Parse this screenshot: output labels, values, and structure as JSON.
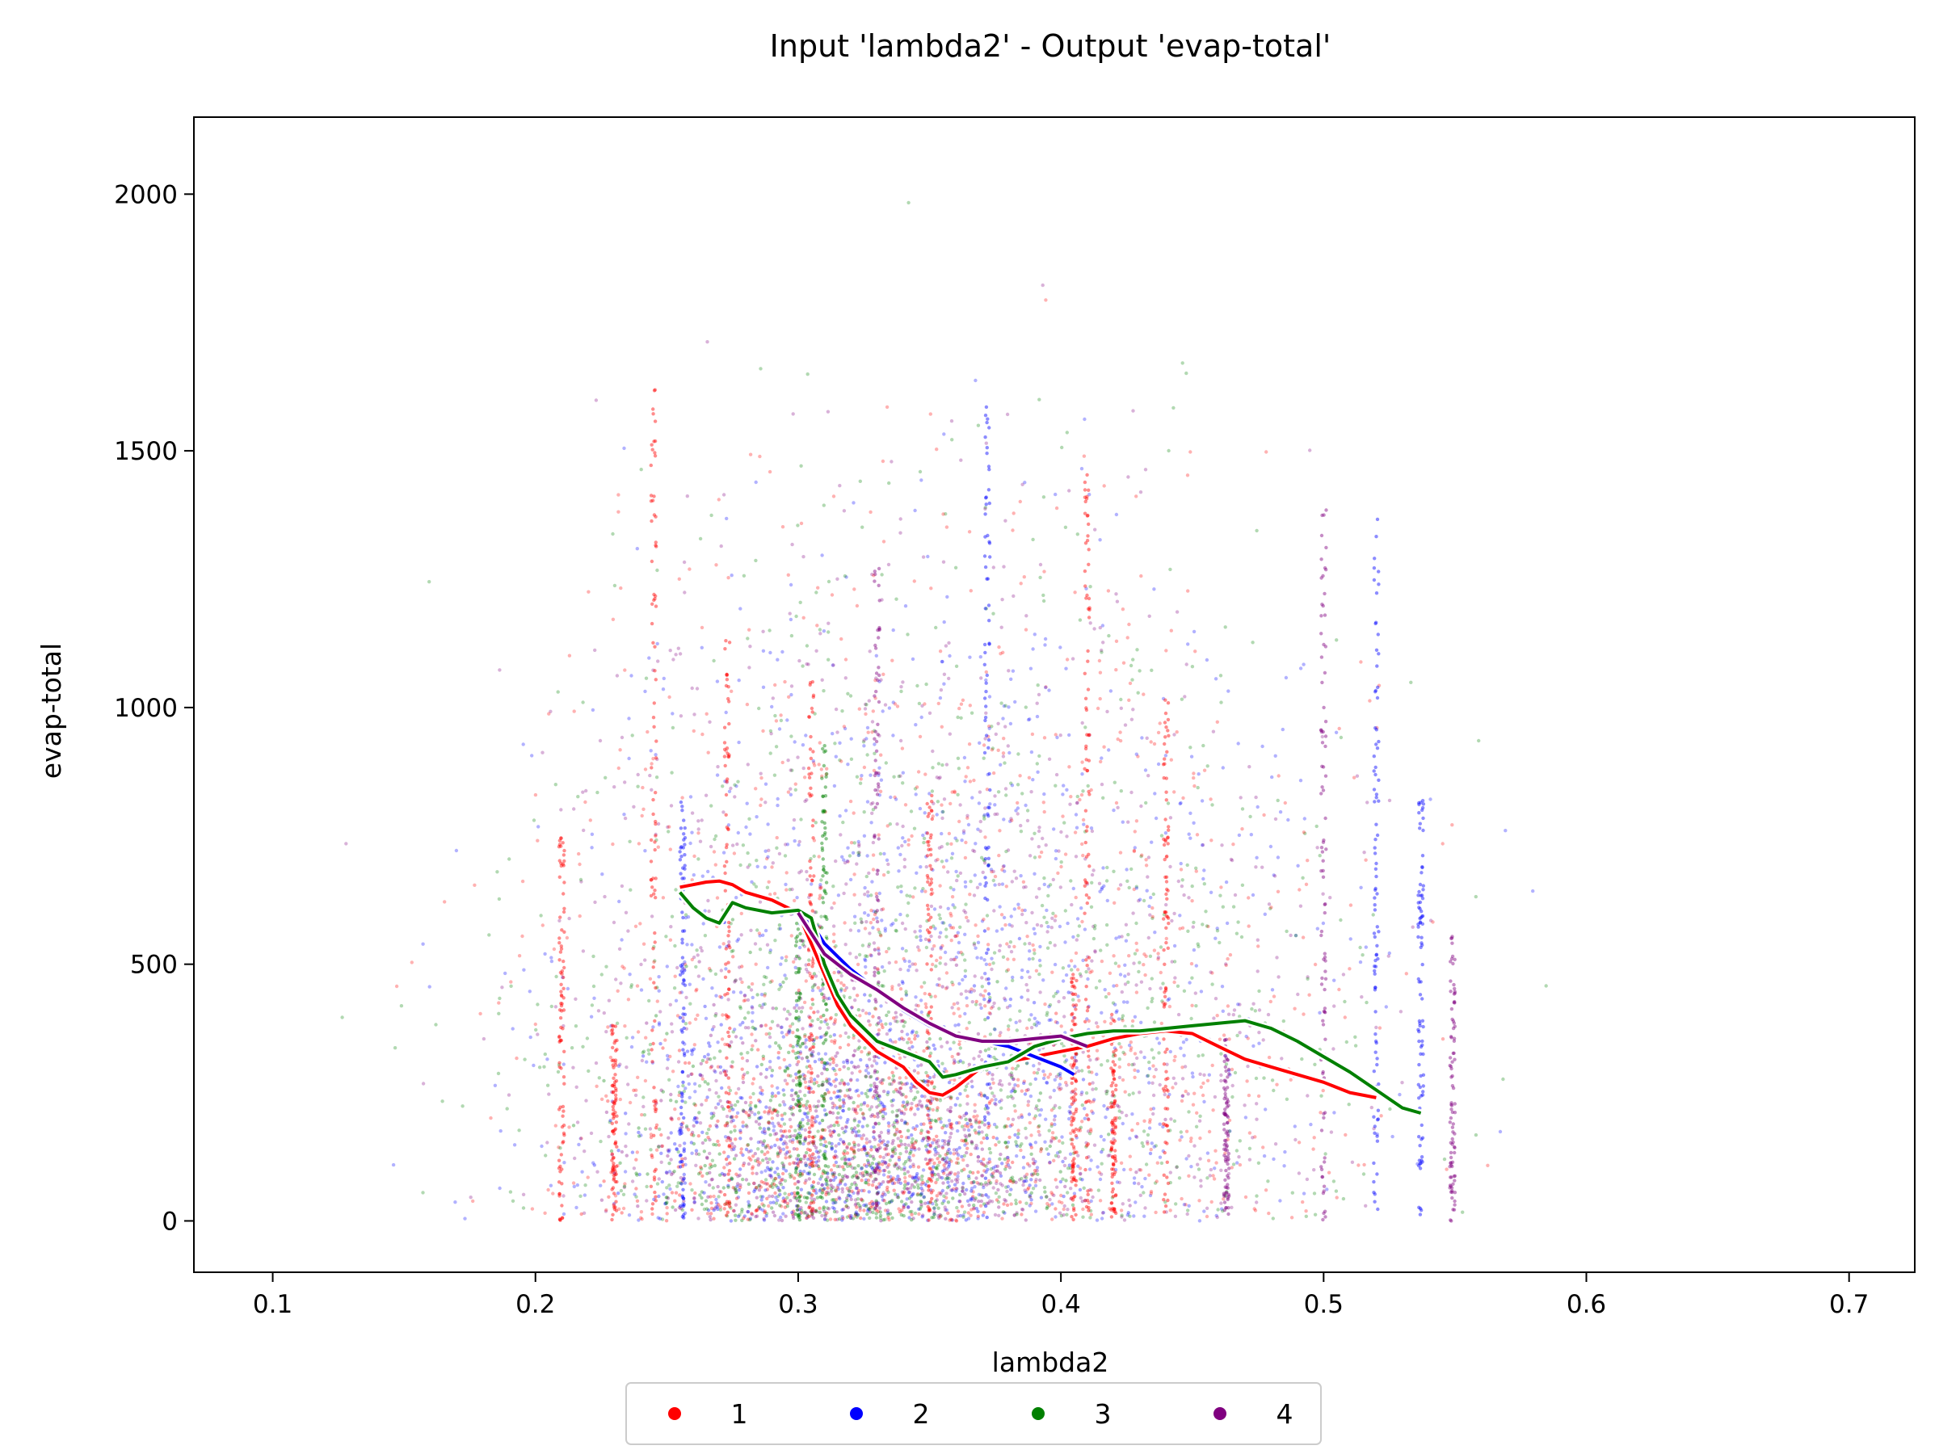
{
  "chart_data": {
    "type": "scatter",
    "title": "Input 'lambda2' - Output 'evap-total'",
    "xlabel": "lambda2",
    "ylabel": "evap-total",
    "xlim": [
      0.07,
      0.725
    ],
    "ylim": [
      -100,
      2150
    ],
    "xticks": [
      "0.1",
      "0.2",
      "0.3",
      "0.4",
      "0.5",
      "0.6",
      "0.7"
    ],
    "yticks": [
      "0",
      "500",
      "1000",
      "1500",
      "2000"
    ],
    "grid": false,
    "legend": {
      "position": "bottom-center",
      "entries": [
        {
          "label": "1",
          "color": "#ff0000"
        },
        {
          "label": "2",
          "color": "#0000ff"
        },
        {
          "label": "3",
          "color": "#008000"
        },
        {
          "label": "4",
          "color": "#800080"
        }
      ]
    },
    "series": [
      {
        "color": "#ff0000",
        "x": [
          0.255,
          0.26,
          0.265,
          0.27,
          0.275,
          0.28,
          0.29,
          0.3,
          0.305,
          0.31,
          0.315,
          0.32,
          0.33,
          0.34,
          0.345,
          0.35,
          0.355,
          0.36,
          0.365,
          0.37,
          0.38,
          0.39,
          0.4,
          0.41,
          0.42,
          0.43,
          0.44,
          0.45,
          0.46,
          0.47,
          0.48,
          0.49,
          0.5,
          0.51,
          0.52
        ],
        "y": [
          650,
          655,
          660,
          662,
          655,
          640,
          625,
          600,
          540,
          480,
          420,
          380,
          330,
          300,
          270,
          250,
          245,
          260,
          280,
          300,
          310,
          320,
          330,
          340,
          355,
          365,
          370,
          365,
          340,
          315,
          300,
          285,
          270,
          250,
          240
        ]
      },
      {
        "color": "#0000ff",
        "x": [
          0.3,
          0.305,
          0.31,
          0.32,
          0.33,
          0.34,
          0.35,
          0.36,
          0.37,
          0.38,
          0.39,
          0.4,
          0.405
        ],
        "y": [
          600,
          580,
          540,
          490,
          450,
          410,
          380,
          360,
          350,
          340,
          320,
          300,
          285
        ]
      },
      {
        "color": "#008000",
        "x": [
          0.255,
          0.26,
          0.265,
          0.27,
          0.275,
          0.28,
          0.29,
          0.3,
          0.305,
          0.31,
          0.315,
          0.32,
          0.33,
          0.34,
          0.35,
          0.355,
          0.36,
          0.37,
          0.38,
          0.39,
          0.4,
          0.41,
          0.42,
          0.43,
          0.44,
          0.45,
          0.46,
          0.47,
          0.48,
          0.49,
          0.5,
          0.51,
          0.52,
          0.53,
          0.537
        ],
        "y": [
          640,
          610,
          590,
          580,
          620,
          610,
          600,
          605,
          590,
          500,
          440,
          400,
          350,
          330,
          310,
          280,
          285,
          300,
          310,
          340,
          355,
          365,
          370,
          370,
          375,
          380,
          385,
          390,
          375,
          350,
          320,
          290,
          255,
          220,
          210
        ]
      },
      {
        "color": "#800080",
        "x": [
          0.3,
          0.305,
          0.31,
          0.32,
          0.33,
          0.34,
          0.35,
          0.36,
          0.37,
          0.38,
          0.39,
          0.4,
          0.41
        ],
        "y": [
          600,
          560,
          520,
          480,
          450,
          415,
          385,
          360,
          350,
          350,
          355,
          360,
          340
        ]
      }
    ]
  }
}
